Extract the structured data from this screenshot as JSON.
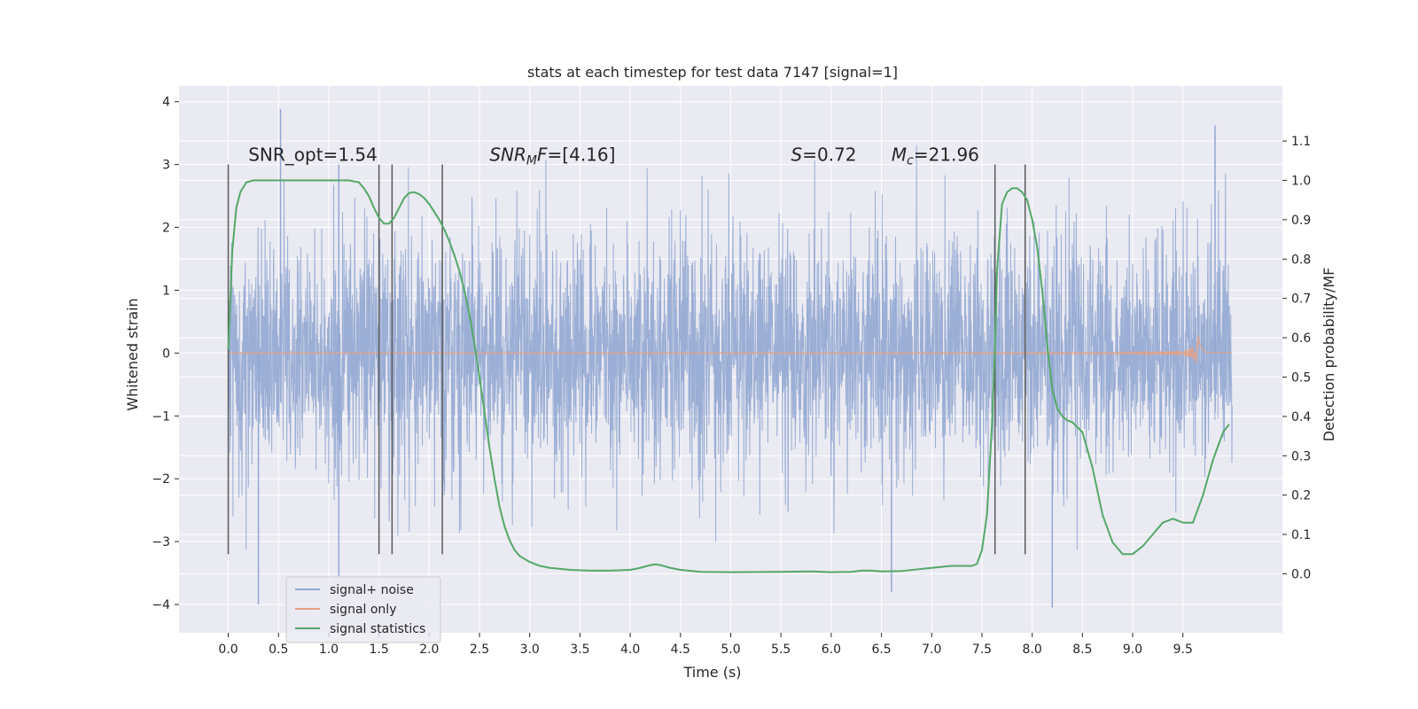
{
  "chart_data": {
    "type": "line",
    "title": "stats at each timestep for test data 7147 [signal=1]",
    "xlabel": "Time (s)",
    "ylabel": "Whitened strain",
    "y2label": "Detection probability/MF",
    "xlim": [
      -0.49,
      10.49
    ],
    "ylim": [
      -4.45,
      4.25
    ],
    "y2lim": [
      -0.15,
      1.24
    ],
    "x_ticks": [
      0.0,
      0.5,
      1.0,
      1.5,
      2.0,
      2.5,
      3.0,
      3.5,
      4.0,
      4.5,
      5.0,
      5.5,
      6.0,
      6.5,
      7.0,
      7.5,
      8.0,
      8.5,
      9.0,
      9.5
    ],
    "x_tick_labels": [
      "0.0",
      "0.5",
      "1.0",
      "1.5",
      "2.0",
      "2.5",
      "3.0",
      "3.5",
      "4.0",
      "4.5",
      "5.0",
      "5.5",
      "6.0",
      "6.5",
      "7.0",
      "7.5",
      "8.0",
      "8.5",
      "9.0",
      "9.5"
    ],
    "y_ticks": [
      -4,
      -3,
      -2,
      -1,
      0,
      1,
      2,
      3,
      4
    ],
    "y_tick_labels": [
      "−4",
      "−3",
      "−2",
      "−1",
      "0",
      "1",
      "2",
      "3",
      "4"
    ],
    "y2_ticks": [
      0.0,
      0.1,
      0.2,
      0.3,
      0.4,
      0.5,
      0.6,
      0.7,
      0.8,
      0.9,
      1.0,
      1.1
    ],
    "y2_tick_labels": [
      "0.0",
      "0.1",
      "0.2",
      "0.3",
      "0.4",
      "0.5",
      "0.6",
      "0.7",
      "0.8",
      "0.9",
      "1.0",
      "1.1"
    ],
    "grid": true,
    "legend_position": "lower-left",
    "colors": {
      "plot_bg": "#eaeaf2",
      "grid": "#ffffff",
      "noise": "#92a7d2",
      "signal": "#e6a183",
      "stats": "#55a868",
      "vline": "#5a5a5a"
    },
    "series": [
      {
        "name": "signal+ noise",
        "axis": "left",
        "style": "dense-noise",
        "t_range": [
          0.0,
          9.99
        ],
        "envelope_typical": [
          -1.8,
          1.8
        ],
        "notable_peaks": [
          {
            "t": 0.52,
            "y": 3.88
          },
          {
            "t": 1.1,
            "y": 3.0
          },
          {
            "t": 8.2,
            "y": -4.05
          },
          {
            "t": 0.3,
            "y": -4.0
          },
          {
            "t": 9.82,
            "y": 3.62
          },
          {
            "t": 1.1,
            "y": -3.55
          },
          {
            "t": 6.6,
            "y": -3.8
          }
        ]
      },
      {
        "name": "signal only",
        "axis": "left",
        "style": "chirp",
        "t_range": [
          0.0,
          9.99
        ],
        "peak_time": 9.65,
        "peak_amplitude": 0.32
      },
      {
        "name": "signal statistics",
        "axis": "right",
        "x": [
          0.0,
          0.04,
          0.08,
          0.12,
          0.18,
          0.25,
          0.35,
          0.5,
          0.7,
          0.9,
          1.1,
          1.2,
          1.3,
          1.35,
          1.4,
          1.45,
          1.5,
          1.55,
          1.6,
          1.65,
          1.7,
          1.75,
          1.8,
          1.85,
          1.9,
          1.95,
          2.0,
          2.05,
          2.1,
          2.15,
          2.2,
          2.25,
          2.3,
          2.35,
          2.4,
          2.45,
          2.5,
          2.55,
          2.6,
          2.65,
          2.7,
          2.75,
          2.8,
          2.85,
          2.9,
          3.0,
          3.1,
          3.2,
          3.4,
          3.6,
          3.8,
          4.0,
          4.1,
          4.2,
          4.25,
          4.3,
          4.4,
          4.5,
          4.7,
          5.0,
          5.5,
          5.8,
          6.0,
          6.2,
          6.3,
          6.4,
          6.5,
          6.7,
          7.0,
          7.2,
          7.4,
          7.45,
          7.5,
          7.55,
          7.6,
          7.63,
          7.65,
          7.7,
          7.75,
          7.8,
          7.85,
          7.9,
          7.95,
          8.0,
          8.05,
          8.1,
          8.15,
          8.2,
          8.25,
          8.3,
          8.35,
          8.4,
          8.5,
          8.6,
          8.7,
          8.8,
          8.9,
          9.0,
          9.1,
          9.2,
          9.3,
          9.4,
          9.5,
          9.6,
          9.7,
          9.8,
          9.9,
          9.96
        ],
        "values": [
          0.57,
          0.82,
          0.93,
          0.97,
          0.995,
          1.0,
          1.0,
          1.0,
          1.0,
          1.0,
          1.0,
          1.0,
          0.995,
          0.98,
          0.96,
          0.93,
          0.905,
          0.89,
          0.89,
          0.905,
          0.93,
          0.955,
          0.968,
          0.97,
          0.965,
          0.955,
          0.94,
          0.92,
          0.9,
          0.875,
          0.845,
          0.81,
          0.77,
          0.72,
          0.66,
          0.585,
          0.5,
          0.41,
          0.32,
          0.24,
          0.17,
          0.12,
          0.085,
          0.06,
          0.045,
          0.03,
          0.02,
          0.015,
          0.01,
          0.008,
          0.008,
          0.01,
          0.015,
          0.022,
          0.024,
          0.022,
          0.015,
          0.01,
          0.005,
          0.004,
          0.005,
          0.006,
          0.004,
          0.005,
          0.008,
          0.008,
          0.006,
          0.007,
          0.015,
          0.02,
          0.02,
          0.025,
          0.06,
          0.15,
          0.38,
          0.58,
          0.77,
          0.94,
          0.97,
          0.98,
          0.98,
          0.97,
          0.95,
          0.9,
          0.83,
          0.72,
          0.58,
          0.47,
          0.42,
          0.4,
          0.39,
          0.385,
          0.36,
          0.27,
          0.15,
          0.08,
          0.05,
          0.05,
          0.07,
          0.1,
          0.13,
          0.14,
          0.13,
          0.13,
          0.2,
          0.29,
          0.36,
          0.38
        ]
      }
    ],
    "vertical_lines": [
      0.0,
      1.5,
      1.63,
      2.13,
      7.63,
      7.93
    ],
    "vertical_line_range": [
      -3.2,
      3.0
    ],
    "annotations": [
      {
        "t": 0.2,
        "y": 3.0,
        "text": "SNR_opt=1.54",
        "italic": false
      },
      {
        "t": 2.6,
        "y": 3.0,
        "text": "SNR",
        "sub": "M",
        "tail": "F=[4.16]",
        "italic": true
      },
      {
        "t": 5.6,
        "y": 3.0,
        "text": "S",
        "sub": "",
        "tail": "=0.72",
        "italic": true
      },
      {
        "t": 6.6,
        "y": 3.0,
        "text": "M",
        "sub": "c",
        "tail": "=21.96",
        "italic": true
      }
    ]
  }
}
